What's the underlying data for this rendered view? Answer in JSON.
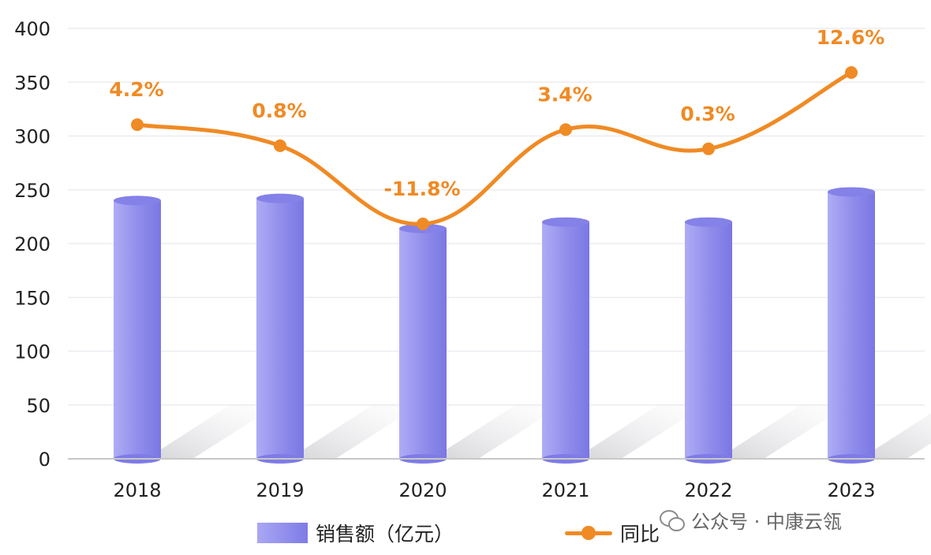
{
  "chart_data": {
    "type": "bar",
    "categories": [
      "2018",
      "2019",
      "2020",
      "2021",
      "2022",
      "2023"
    ],
    "series": [
      {
        "name": "销售额（亿元）",
        "type": "bar",
        "values": [
          240,
          242,
          214,
          220,
          220,
          248
        ],
        "color": "#8B89EC"
      },
      {
        "name": "同比",
        "type": "line",
        "values": [
          4.2,
          0.8,
          -11.8,
          3.4,
          0.3,
          12.6
        ],
        "labels": [
          "4.2%",
          "0.8%",
          "-11.8%",
          "3.4%",
          "0.3%",
          "12.6%"
        ],
        "color": "#F08A24"
      }
    ],
    "yticks": [
      "0",
      "50",
      "100",
      "150",
      "200",
      "250",
      "300",
      "350",
      "400"
    ],
    "ylim": [
      0,
      400
    ],
    "grid": true,
    "legend_position": "bottom"
  },
  "watermark": {
    "text": "公众号 · 中康云瓴",
    "icon": "wechat-icon"
  }
}
